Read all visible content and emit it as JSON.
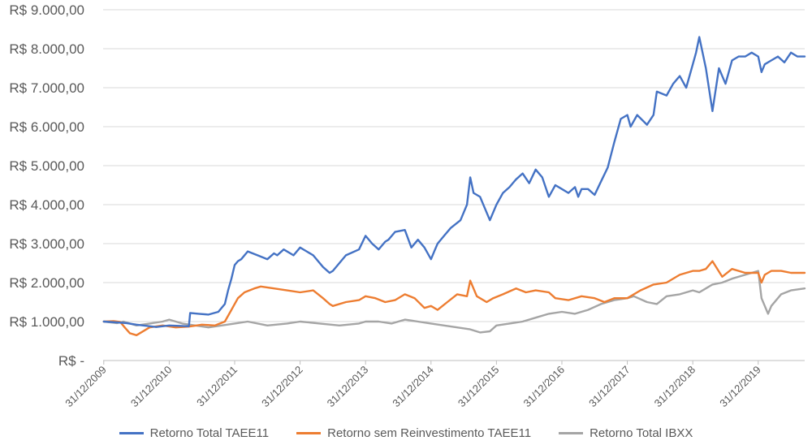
{
  "chart_data": {
    "type": "line",
    "y_tick_labels": [
      "R$ -",
      "R$ 1.000,00",
      "R$ 2.000,00",
      "R$ 3.000,00",
      "R$ 4.000,00",
      "R$ 5.000,00",
      "R$ 6.000,00",
      "R$ 7.000,00",
      "R$ 8.000,00",
      "R$ 9.000,00"
    ],
    "ylim": [
      0,
      9000
    ],
    "x_tick_labels": [
      "31/12/2009",
      "31/12/2010",
      "31/12/2011",
      "31/12/2012",
      "31/12/2013",
      "31/12/2014",
      "31/12/2015",
      "31/12/2016",
      "31/12/2017",
      "31/12/2018",
      "31/12/2019"
    ],
    "xlim": [
      2009.99,
      2020.71
    ],
    "grid": "horizontal",
    "legend_position": "bottom",
    "series": [
      {
        "name": "Retorno Total TAEE11",
        "color": "#4472C4",
        "x": [
          2010.0,
          2010.2,
          2010.35,
          2010.5,
          2010.8,
          2011.0,
          2011.3,
          2011.32,
          2011.45,
          2011.6,
          2011.75,
          2011.85,
          2011.9,
          2011.95,
          2012.0,
          2012.05,
          2012.1,
          2012.2,
          2012.35,
          2012.5,
          2012.6,
          2012.65,
          2012.75,
          2012.9,
          2013.0,
          2013.1,
          2013.2,
          2013.35,
          2013.45,
          2013.5,
          2013.7,
          2013.9,
          2014.0,
          2014.1,
          2014.2,
          2014.3,
          2014.35,
          2014.45,
          2014.6,
          2014.7,
          2014.8,
          2014.9,
          2015.0,
          2015.05,
          2015.1,
          2015.2,
          2015.3,
          2015.45,
          2015.55,
          2015.6,
          2015.65,
          2015.75,
          2015.9,
          2016.0,
          2016.1,
          2016.2,
          2016.3,
          2016.4,
          2016.5,
          2016.6,
          2016.7,
          2016.8,
          2016.9,
          2017.0,
          2017.1,
          2017.2,
          2017.25,
          2017.3,
          2017.4,
          2017.5,
          2017.6,
          2017.7,
          2017.8,
          2017.9,
          2018.0,
          2018.05,
          2018.15,
          2018.3,
          2018.4,
          2018.45,
          2018.6,
          2018.7,
          2018.8,
          2018.9,
          2019.0,
          2019.05,
          2019.1,
          2019.2,
          2019.3,
          2019.4,
          2019.5,
          2019.6,
          2019.7,
          2019.8,
          2019.9,
          2020.0,
          2020.05,
          2020.1,
          2020.2,
          2020.3,
          2020.4,
          2020.5,
          2020.6,
          2020.71
        ],
        "values": [
          1000,
          980,
          960,
          920,
          860,
          900,
          880,
          1220,
          1200,
          1180,
          1250,
          1450,
          1800,
          2100,
          2450,
          2550,
          2600,
          2800,
          2700,
          2600,
          2750,
          2700,
          2850,
          2700,
          2900,
          2800,
          2700,
          2400,
          2250,
          2300,
          2700,
          2850,
          3200,
          3000,
          2850,
          3050,
          3100,
          3300,
          3350,
          2900,
          3100,
          2900,
          2600,
          2800,
          3000,
          3200,
          3400,
          3600,
          4000,
          4700,
          4300,
          4200,
          3600,
          4000,
          4300,
          4450,
          4650,
          4800,
          4550,
          4900,
          4700,
          4200,
          4500,
          4400,
          4300,
          4450,
          4200,
          4400,
          4400,
          4250,
          4600,
          4950,
          5600,
          6200,
          6300,
          6000,
          6300,
          6050,
          6300,
          6900,
          6800,
          7100,
          7300,
          7000,
          7600,
          7900,
          8300,
          7500,
          6400,
          7500,
          7100,
          7700,
          7800,
          7800,
          7900,
          7800,
          7400,
          7600,
          7700,
          7800,
          7650,
          7900,
          7800,
          7800
        ]
      },
      {
        "name": "Retorno sem Reinvestimento TAEE11",
        "color": "#ED7D31",
        "x": [
          2010.0,
          2010.15,
          2010.25,
          2010.32,
          2010.4,
          2010.5,
          2010.7,
          2010.9,
          2011.1,
          2011.3,
          2011.5,
          2011.7,
          2011.85,
          2011.95,
          2012.05,
          2012.15,
          2012.3,
          2012.4,
          2012.6,
          2012.8,
          2013.0,
          2013.2,
          2013.35,
          2013.45,
          2013.5,
          2013.7,
          2013.9,
          2014.0,
          2014.15,
          2014.3,
          2014.45,
          2014.6,
          2014.75,
          2014.9,
          2015.0,
          2015.1,
          2015.25,
          2015.4,
          2015.55,
          2015.6,
          2015.7,
          2015.85,
          2015.95,
          2016.1,
          2016.3,
          2016.45,
          2016.6,
          2016.8,
          2016.9,
          2017.1,
          2017.3,
          2017.5,
          2017.65,
          2017.8,
          2018.0,
          2018.2,
          2018.4,
          2018.6,
          2018.8,
          2019.0,
          2019.1,
          2019.2,
          2019.3,
          2019.45,
          2019.6,
          2019.8,
          2020.0,
          2020.05,
          2020.1,
          2020.2,
          2020.35,
          2020.5,
          2020.71
        ],
        "values": [
          1000,
          1010,
          990,
          850,
          700,
          650,
          850,
          900,
          850,
          870,
          920,
          900,
          1000,
          1300,
          1600,
          1750,
          1850,
          1900,
          1850,
          1800,
          1750,
          1800,
          1600,
          1450,
          1400,
          1500,
          1550,
          1650,
          1600,
          1500,
          1550,
          1700,
          1600,
          1350,
          1400,
          1300,
          1500,
          1700,
          1650,
          2050,
          1650,
          1500,
          1600,
          1700,
          1850,
          1750,
          1800,
          1750,
          1600,
          1550,
          1650,
          1600,
          1500,
          1600,
          1600,
          1800,
          1950,
          2000,
          2200,
          2300,
          2300,
          2350,
          2550,
          2150,
          2350,
          2250,
          2250,
          2000,
          2200,
          2300,
          2300,
          2250,
          2250
        ]
      },
      {
        "name": "Retorno Total IBXX",
        "color": "#A5A5A5",
        "x": [
          2010.0,
          2010.2,
          2010.3,
          2010.5,
          2010.7,
          2010.9,
          2011.0,
          2011.2,
          2011.4,
          2011.6,
          2011.8,
          2012.0,
          2012.2,
          2012.5,
          2012.8,
          2013.0,
          2013.3,
          2013.6,
          2013.9,
          2014.0,
          2014.2,
          2014.4,
          2014.6,
          2014.8,
          2015.0,
          2015.2,
          2015.4,
          2015.6,
          2015.75,
          2015.9,
          2016.0,
          2016.2,
          2016.4,
          2016.6,
          2016.8,
          2017.0,
          2017.2,
          2017.4,
          2017.6,
          2017.8,
          2018.0,
          2018.1,
          2018.3,
          2018.45,
          2018.6,
          2018.8,
          2019.0,
          2019.1,
          2019.2,
          2019.3,
          2019.45,
          2019.6,
          2019.8,
          2020.0,
          2020.05,
          2020.15,
          2020.2,
          2020.35,
          2020.5,
          2020.71
        ],
        "values": [
          1000,
          960,
          1000,
          900,
          950,
          1000,
          1050,
          950,
          900,
          850,
          900,
          950,
          1000,
          900,
          950,
          1000,
          950,
          900,
          950,
          1000,
          1000,
          950,
          1050,
          1000,
          950,
          900,
          850,
          800,
          720,
          750,
          900,
          950,
          1000,
          1100,
          1200,
          1250,
          1200,
          1300,
          1450,
          1550,
          1600,
          1650,
          1500,
          1450,
          1650,
          1700,
          1800,
          1750,
          1850,
          1950,
          2000,
          2100,
          2200,
          2300,
          1600,
          1200,
          1400,
          1700,
          1800,
          1850
        ]
      }
    ]
  }
}
